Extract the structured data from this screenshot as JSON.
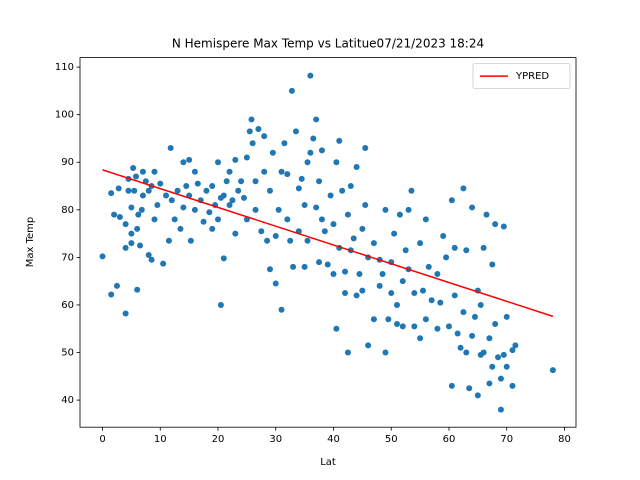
{
  "chart_data": {
    "type": "scatter",
    "title": "N Hemispere Max Temp vs Latitue07/21/2023 18:24",
    "xlabel": "Lat",
    "ylabel": "Max Temp",
    "color": "#1f77b4",
    "x": [
      0,
      1.5,
      1.5,
      2,
      2.5,
      2.8,
      3,
      4,
      4,
      4,
      4.5,
      4.5,
      5,
      5,
      5,
      5.3,
      5.5,
      5.8,
      6,
      6,
      6.2,
      6.5,
      6.8,
      7,
      7,
      7.5,
      8,
      8,
      8.5,
      8.5,
      9,
      9,
      9.5,
      10,
      10.5,
      11,
      11.5,
      11.8,
      12,
      12.5,
      13,
      13.5,
      14,
      14,
      14.5,
      15,
      15,
      15.3,
      16,
      16,
      16.5,
      17,
      17.5,
      18,
      18.5,
      19,
      19,
      19.5,
      20,
      20,
      20.5,
      20.5,
      21,
      21,
      21.5,
      22,
      22,
      22.5,
      23,
      23,
      23.5,
      24,
      24.5,
      25,
      25,
      25.5,
      25.8,
      26,
      26.5,
      26.5,
      27,
      27.5,
      28,
      28,
      28.5,
      29,
      29,
      29.5,
      30,
      30,
      30.5,
      31,
      31,
      31.5,
      32,
      32,
      32.5,
      32.8,
      33,
      33.5,
      34,
      34,
      34.5,
      35,
      35,
      35.5,
      35.5,
      36,
      36,
      36.5,
      37,
      37,
      37.5,
      37.5,
      38,
      38,
      38.5,
      39,
      39.5,
      40,
      40,
      40.5,
      40.5,
      41,
      41,
      41.5,
      42,
      42,
      42.5,
      42.5,
      43,
      43,
      43.5,
      44,
      44,
      44.5,
      45,
      45,
      45.5,
      45.5,
      46,
      46,
      47,
      47,
      48,
      48,
      48.5,
      49,
      49,
      49.5,
      50,
      50,
      50.5,
      51,
      51,
      51.5,
      52,
      52,
      52.5,
      53,
      53,
      53.5,
      54,
      54,
      55,
      55,
      55.5,
      56,
      56,
      56.5,
      57,
      58,
      58,
      58.5,
      59,
      59.5,
      60,
      60.5,
      60.5,
      61,
      61,
      61.5,
      62,
      62.5,
      62.5,
      63,
      63,
      63.5,
      64,
      64,
      64.5,
      65,
      65,
      65.5,
      65.5,
      66,
      66,
      66.5,
      67,
      67,
      67.5,
      67.5,
      68,
      68,
      68.5,
      69,
      69,
      69.5,
      69.5,
      70,
      70,
      71,
      71,
      71.5,
      78
    ],
    "y": [
      70.2,
      62.2,
      83.5,
      79,
      64,
      84.5,
      78.5,
      58.2,
      72,
      77,
      84,
      86.5,
      75,
      80.5,
      73,
      88.8,
      84,
      87,
      63.2,
      76,
      79,
      72.5,
      80,
      83,
      88,
      86,
      70.5,
      84,
      69.5,
      85,
      88,
      78,
      81,
      85.5,
      68.7,
      83,
      73.5,
      93,
      82,
      78,
      84,
      76,
      90,
      80.5,
      85,
      90.5,
      83,
      73.5,
      88,
      80,
      85.5,
      82,
      77.5,
      84,
      79.5,
      76,
      85,
      81,
      78,
      90,
      60,
      82.5,
      69.8,
      83,
      86,
      81,
      88,
      82,
      75,
      90.5,
      84,
      86,
      82.5,
      78,
      91,
      96.5,
      99,
      94,
      80,
      86,
      97,
      75.5,
      95.5,
      88,
      73.5,
      67.5,
      84,
      92,
      74.5,
      64.5,
      80,
      88,
      59,
      94,
      78,
      87.5,
      73.5,
      105,
      68,
      96.5,
      84.5,
      75.5,
      86.5,
      68,
      81,
      90,
      73.5,
      92,
      108.2,
      95,
      80.5,
      99,
      86,
      69,
      92.5,
      78,
      75.5,
      68.5,
      83,
      66.5,
      77,
      90,
      55,
      94.5,
      72,
      84,
      62.5,
      67,
      50,
      79,
      71.5,
      85,
      74,
      62,
      89,
      66.5,
      63,
      76,
      93,
      81,
      51.5,
      70,
      57,
      73,
      64,
      69.5,
      66.5,
      50,
      80,
      57,
      62.5,
      69,
      75,
      60,
      56,
      79,
      65,
      55.5,
      71.5,
      80,
      67.5,
      84,
      55.5,
      62.5,
      73,
      53,
      63,
      78,
      57,
      68,
      61,
      55,
      66.5,
      60.5,
      74.5,
      70,
      55.5,
      82,
      43,
      62,
      72,
      54,
      51,
      84.5,
      58.5,
      71.5,
      50,
      42.5,
      80.5,
      53.5,
      57.5,
      63,
      41,
      49.5,
      60,
      72,
      50,
      79,
      43.5,
      53,
      68.5,
      47,
      77,
      56,
      49,
      38,
      44.5,
      76.5,
      49.5,
      57.5,
      47,
      43,
      50.5,
      51.5,
      46.3
    ],
    "line": {
      "name": "YPRED",
      "color": "#ff0000",
      "x": [
        0,
        78
      ],
      "values": [
        88.4,
        57.6
      ]
    },
    "legend": "upper right",
    "xlim": [
      -3.9,
      82.0
    ],
    "ylim": [
      34.3,
      112.0
    ],
    "xticks": [
      0,
      10,
      20,
      30,
      40,
      50,
      60,
      70,
      80
    ],
    "yticks": [
      40,
      50,
      60,
      70,
      80,
      90,
      100,
      110
    ]
  }
}
